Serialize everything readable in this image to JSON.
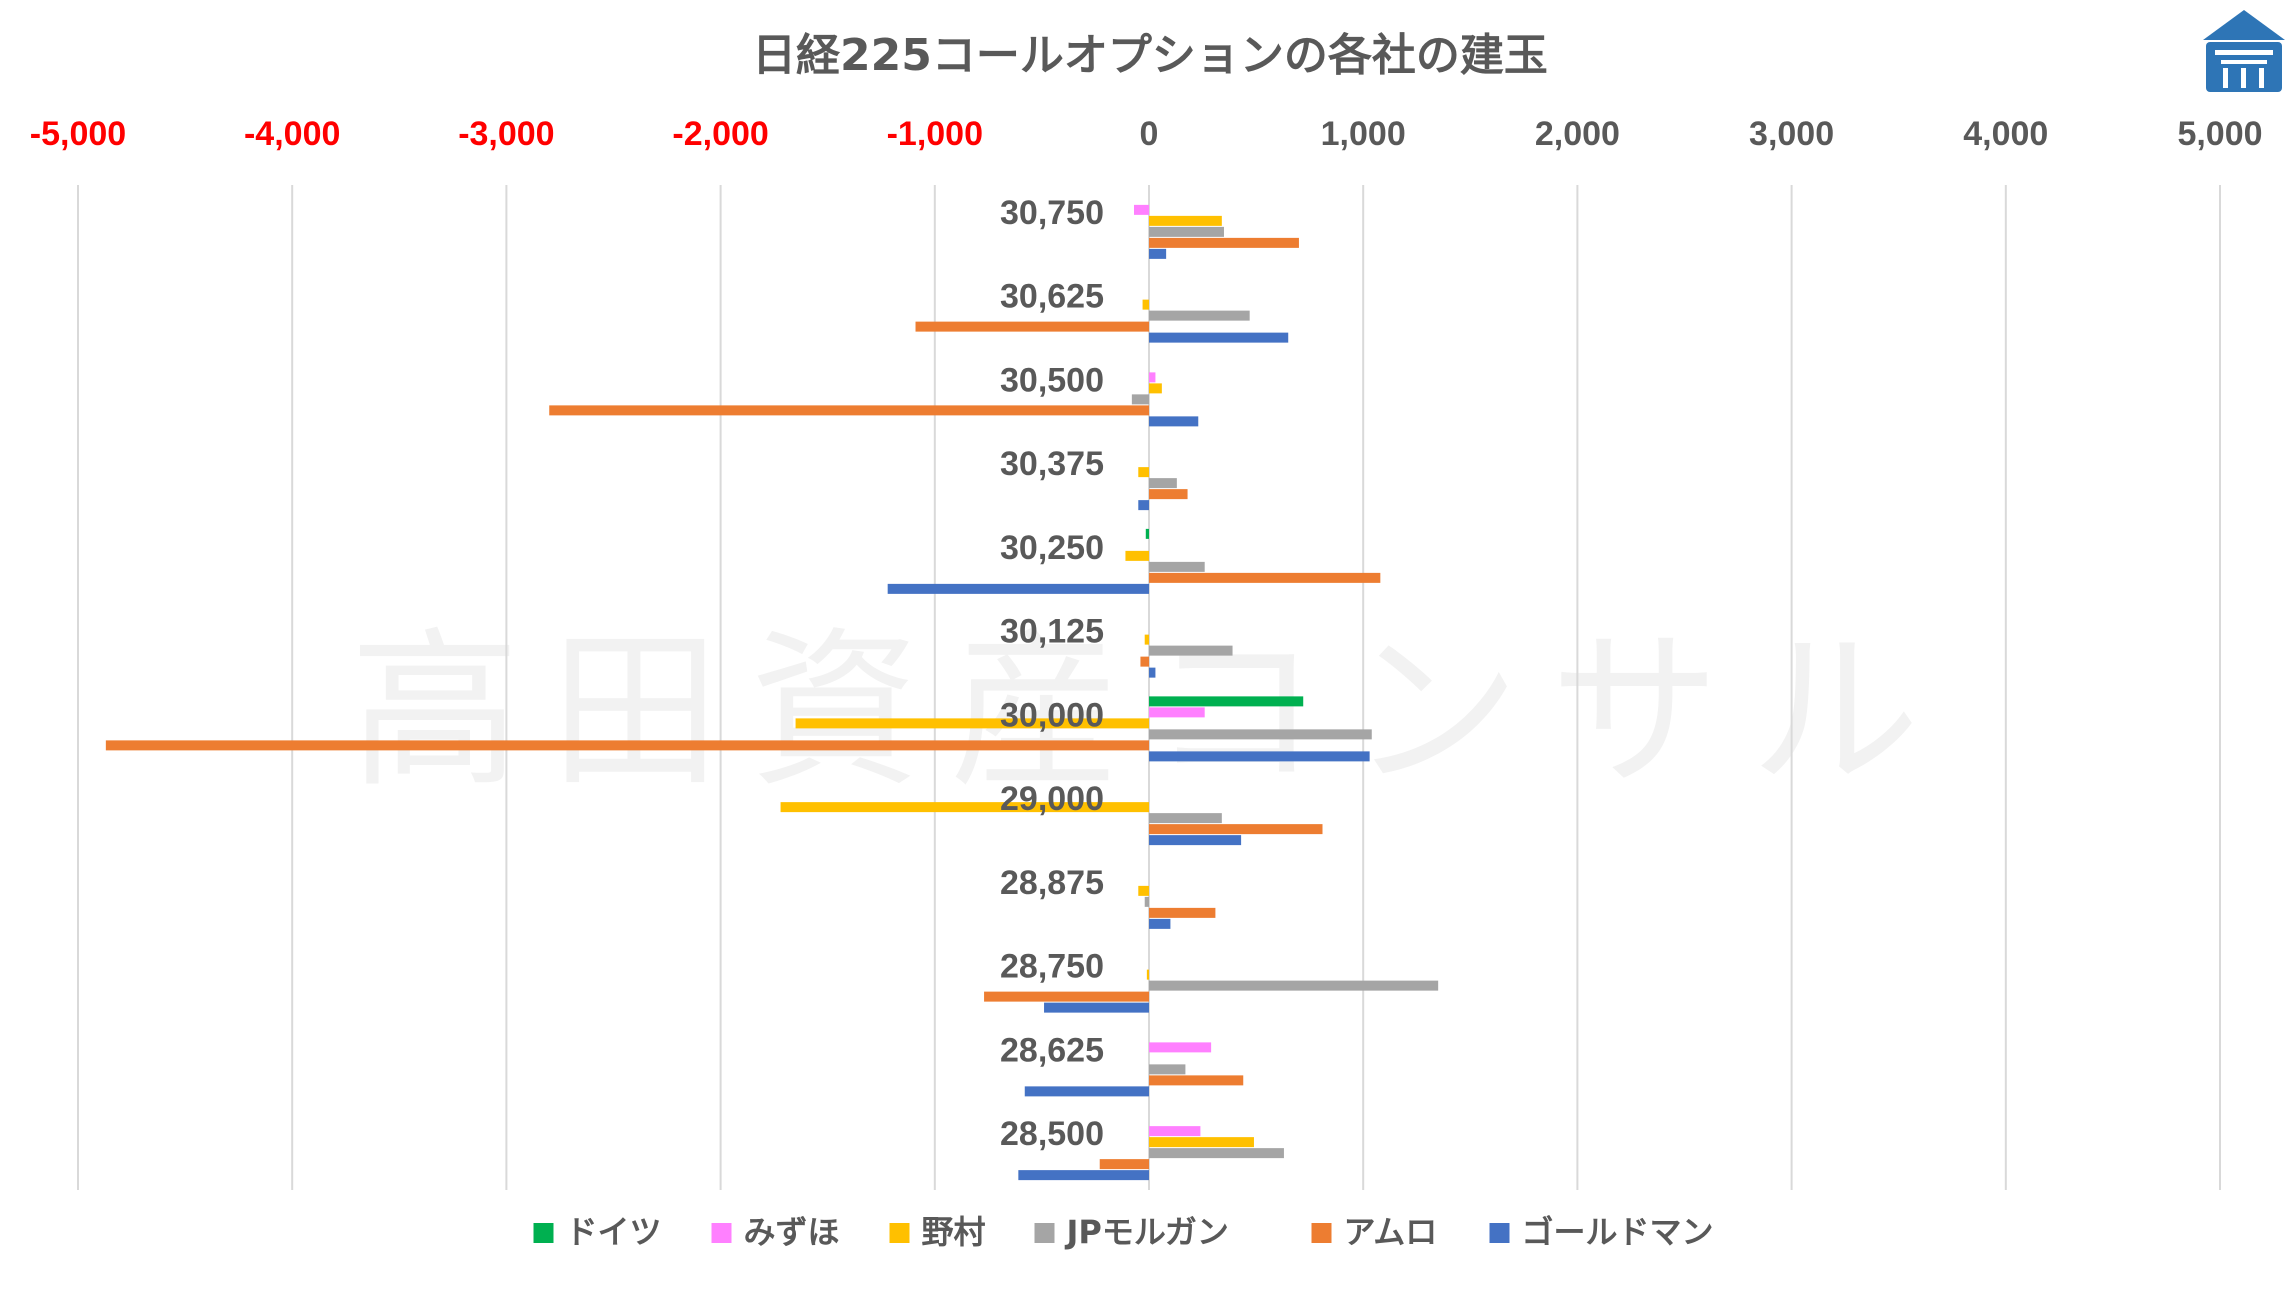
{
  "watermark": "高田資産コンサル",
  "chart_data": {
    "type": "bar",
    "orientation": "horizontal",
    "title": "日経225コールオプションの各社の建玉",
    "xlim": [
      -5000,
      5000
    ],
    "x_ticks": [
      -5000,
      -4000,
      -3000,
      -2000,
      -1000,
      0,
      1000,
      2000,
      3000,
      4000,
      5000
    ],
    "x_tick_labels": [
      "-5,000",
      "-4,000",
      "-3,000",
      "-2,000",
      "-1,000",
      "0",
      "1,000",
      "2,000",
      "3,000",
      "4,000",
      "5,000"
    ],
    "negative_tick_color": "#ff0000",
    "positive_tick_color": "#595959",
    "grid": true,
    "legend_position": "bottom",
    "categories": [
      "30,750",
      "30,625",
      "30,500",
      "30,375",
      "30,250",
      "30,125",
      "30,000",
      "29,000",
      "28,875",
      "28,750",
      "28,625",
      "28,500"
    ],
    "series": [
      {
        "name": "ドイツ",
        "color": "#00b050",
        "values": [
          0,
          0,
          0,
          0,
          -15,
          0,
          720,
          0,
          0,
          0,
          0,
          0
        ]
      },
      {
        "name": "みずほ",
        "color": "#ff80ff",
        "values": [
          -70,
          0,
          30,
          0,
          0,
          0,
          260,
          0,
          0,
          0,
          290,
          240
        ]
      },
      {
        "name": "野村",
        "color": "#ffc000",
        "values": [
          340,
          -30,
          60,
          -50,
          -110,
          -20,
          -1650,
          -1720,
          -50,
          -10,
          0,
          490
        ]
      },
      {
        "name": "JPモルガン",
        "color": "#a5a5a5",
        "values": [
          350,
          470,
          -80,
          130,
          260,
          390,
          1040,
          340,
          -20,
          1350,
          170,
          630
        ]
      },
      {
        "name": "アムロ",
        "color": "#ed7d31",
        "values": [
          700,
          -1090,
          -2800,
          180,
          1080,
          -40,
          -4870,
          810,
          310,
          -770,
          440,
          -230
        ]
      },
      {
        "name": "ゴールドマン",
        "color": "#4472c4",
        "values": [
          80,
          650,
          230,
          -50,
          -1220,
          30,
          1030,
          430,
          100,
          -490,
          -580,
          -610
        ]
      }
    ]
  }
}
